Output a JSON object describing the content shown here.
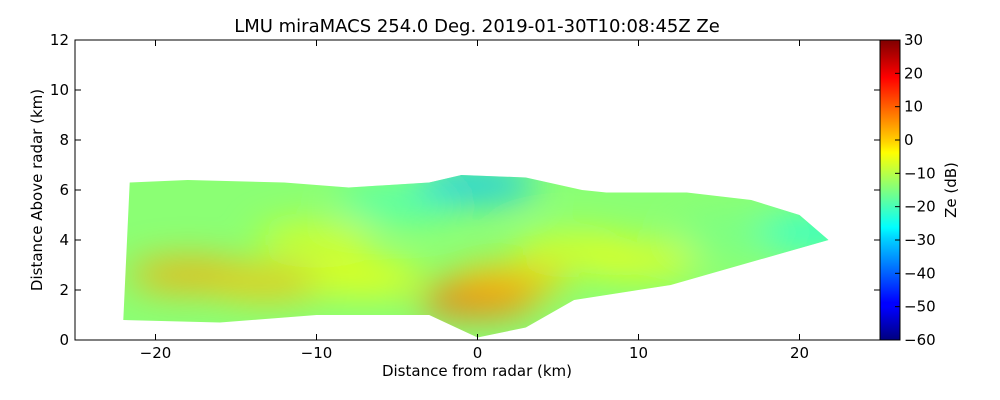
{
  "chart_data": {
    "type": "heatmap",
    "title": "LMU miraMACS 254.0 Deg. 2019-01-30T10:08:45Z  Ze",
    "xlabel": "Distance from radar (km)",
    "ylabel": "Distance Above radar  (km)",
    "xlim": [
      -25,
      25
    ],
    "ylim": [
      0,
      12
    ],
    "x_ticks": [
      -20,
      -10,
      0,
      10,
      20
    ],
    "x_tick_labels": [
      "−20",
      "−10",
      "0",
      "10",
      "20"
    ],
    "y_ticks": [
      0,
      2,
      4,
      6,
      8,
      10,
      12
    ],
    "y_tick_labels": [
      "0",
      "2",
      "4",
      "6",
      "8",
      "10",
      "12"
    ],
    "grid": false,
    "colorbar": {
      "label": "Ze (dB)",
      "range": [
        -60,
        30
      ],
      "colormap": "jet",
      "ticks": [
        30,
        20,
        10,
        0,
        -10,
        -20,
        -30,
        -40,
        -50,
        -60
      ],
      "tick_labels": [
        "30",
        "20",
        "10",
        "0",
        "−10",
        "−20",
        "−30",
        "−40",
        "−50",
        "−60"
      ]
    },
    "echo_outline": [
      [
        -22,
        0.8
      ],
      [
        -21.6,
        6.3
      ],
      [
        -18,
        6.4
      ],
      [
        -12,
        6.3
      ],
      [
        -8,
        6.1
      ],
      [
        -3,
        6.3
      ],
      [
        -1,
        6.6
      ],
      [
        3,
        6.5
      ],
      [
        6.5,
        6.0
      ],
      [
        8,
        5.9
      ],
      [
        13,
        5.9
      ],
      [
        17,
        5.6
      ],
      [
        20,
        5.0
      ],
      [
        21.8,
        4.0
      ],
      [
        12,
        2.2
      ],
      [
        6,
        1.6
      ],
      [
        3,
        0.5
      ],
      [
        0,
        0.1
      ],
      [
        -3,
        1.0
      ],
      [
        -10,
        1.0
      ],
      [
        -16,
        0.7
      ]
    ],
    "reflectivity_features": [
      {
        "x": -18,
        "y": 2.6,
        "ze": 4
      },
      {
        "x": -13,
        "y": 2.3,
        "ze": 2
      },
      {
        "x": -10,
        "y": 4.0,
        "ze": -6
      },
      {
        "x": -7,
        "y": 2.5,
        "ze": -4
      },
      {
        "x": -5,
        "y": 5.5,
        "ze": -20
      },
      {
        "x": 0,
        "y": 1.6,
        "ze": 11
      },
      {
        "x": 2,
        "y": 2.4,
        "ze": 2
      },
      {
        "x": 0,
        "y": 6.2,
        "ze": -32
      },
      {
        "x": 6,
        "y": 3.6,
        "ze": -6
      },
      {
        "x": 10,
        "y": 3.2,
        "ze": -5
      },
      {
        "x": 16,
        "y": 4.3,
        "ze": -16
      },
      {
        "x": 21,
        "y": 4.3,
        "ze": -24
      }
    ]
  }
}
